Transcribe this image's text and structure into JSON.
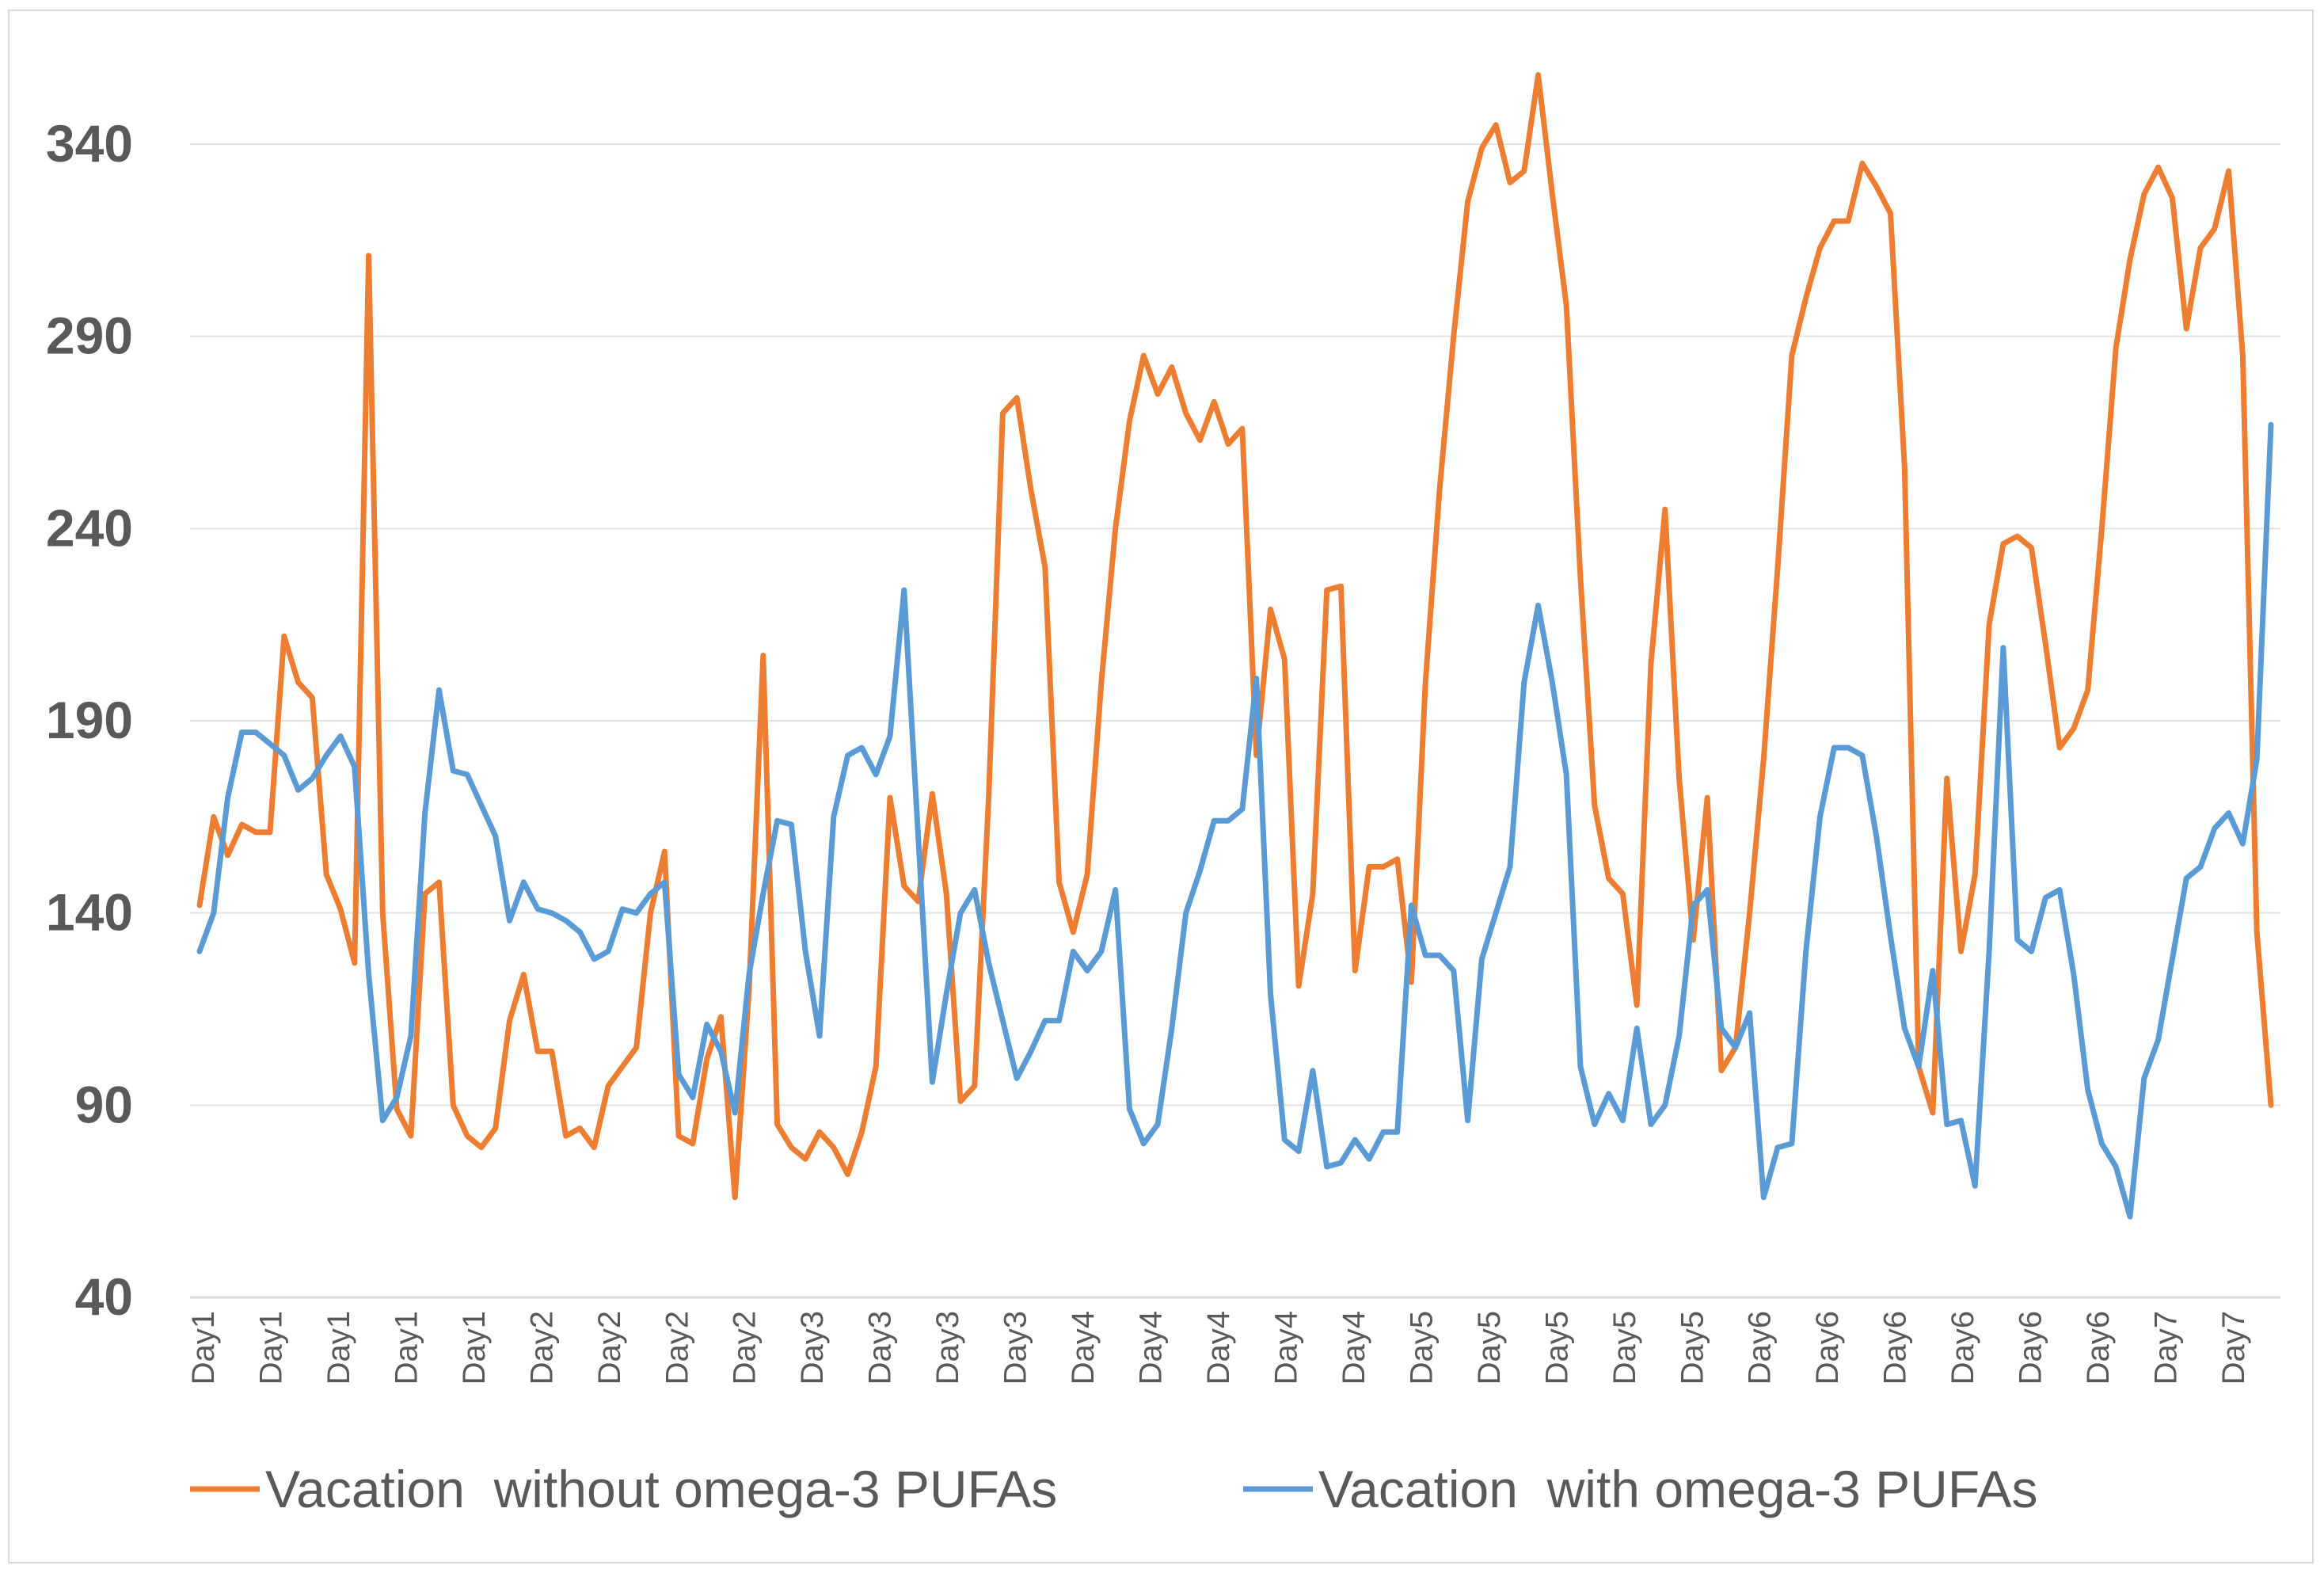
{
  "chart_data": {
    "type": "line",
    "title": "",
    "xlabel": "",
    "ylabel": "",
    "ylim": [
      40,
      360
    ],
    "yticks": [
      40,
      90,
      140,
      190,
      240,
      290,
      340
    ],
    "grid": true,
    "legend_position": "bottom",
    "x_tick_labels": [
      "Day1",
      "Day1",
      "Day1",
      "Day1",
      "Day1",
      "Day2",
      "Day2",
      "Day2",
      "Day2",
      "Day3",
      "Day3",
      "Day3",
      "Day3",
      "Day4",
      "Day4",
      "Day4",
      "Day4",
      "Day4",
      "Day5",
      "Day5",
      "Day5",
      "Day5",
      "Day5",
      "Day6",
      "Day6",
      "Day6",
      "Day6",
      "Day6",
      "Day6",
      "Day7",
      "Day7"
    ],
    "series": [
      {
        "name": "Vacation  without omega-3 PUFAs",
        "color": "#ED7D31",
        "values": [
          142,
          165,
          155,
          163,
          161,
          161,
          212,
          200,
          196,
          150,
          141,
          127,
          311,
          140,
          89,
          82,
          145,
          148,
          90,
          82,
          79,
          84,
          112,
          124,
          104,
          104,
          82,
          84,
          79,
          95,
          100,
          105,
          140,
          156,
          82,
          80,
          102,
          113,
          66,
          120,
          207,
          85,
          79,
          76,
          83,
          79,
          72,
          83,
          100,
          170,
          147,
          143,
          171,
          145,
          91,
          95,
          170,
          270,
          274,
          250,
          230,
          148,
          135,
          150,
          200,
          240,
          268,
          285,
          275,
          282,
          270,
          263,
          273,
          262,
          266,
          181,
          219,
          206,
          121,
          145,
          224,
          225,
          125,
          152,
          152,
          154,
          122,
          200,
          250,
          290,
          325,
          339,
          345,
          330,
          333,
          358,
          327,
          298,
          227,
          168,
          149,
          145,
          116,
          205,
          245,
          175,
          133,
          170,
          99,
          105,
          140,
          180,
          230,
          285,
          300,
          313,
          320,
          320,
          335,
          329,
          322,
          256,
          100,
          88,
          175,
          130,
          150,
          215,
          236,
          238,
          235,
          210,
          183,
          188,
          198,
          240,
          287,
          310,
          327,
          334,
          326,
          292,
          313,
          318,
          333,
          285,
          135,
          90
        ]
      },
      {
        "name": "Vacation  with omega-3 PUFAs",
        "color": "#5B9BD5",
        "values": [
          130,
          140,
          170,
          187,
          187,
          184,
          181,
          172,
          175,
          181,
          186,
          178,
          124,
          86,
          92,
          108,
          166,
          198,
          177,
          176,
          168,
          160,
          138,
          148,
          141,
          140,
          138,
          135,
          128,
          130,
          141,
          140,
          145,
          148,
          98,
          92,
          111,
          104,
          88,
          124,
          145,
          164,
          163,
          130,
          108,
          165,
          181,
          183,
          176,
          186,
          224,
          160,
          96,
          119,
          140,
          146,
          127,
          112,
          97,
          104,
          112,
          112,
          130,
          125,
          130,
          146,
          89,
          80,
          85,
          110,
          140,
          151,
          164,
          164,
          167,
          201,
          119,
          81,
          78,
          99,
          74,
          75,
          81,
          76,
          83,
          83,
          142,
          129,
          129,
          125,
          86,
          128,
          140,
          152,
          200,
          220,
          200,
          176,
          100,
          85,
          93,
          86,
          110,
          85,
          90,
          108,
          142,
          146,
          110,
          105,
          114,
          66,
          79,
          80,
          130,
          165,
          183,
          183,
          181,
          160,
          134,
          110,
          100,
          125,
          85,
          86,
          69,
          130,
          209,
          133,
          130,
          144,
          146,
          124,
          94,
          80,
          74,
          61,
          97,
          107,
          128,
          149,
          152,
          162,
          166,
          158,
          180,
          267
        ]
      }
    ]
  }
}
